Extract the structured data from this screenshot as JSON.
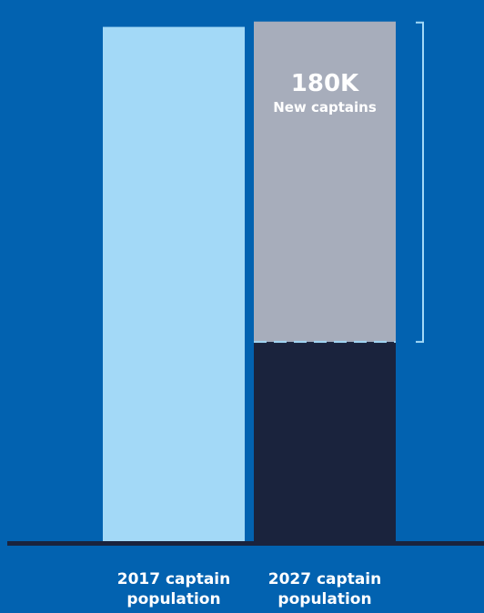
{
  "chart_data": {
    "type": "bar",
    "stacked": true,
    "categories": [
      "2017 captain population",
      "2027 captain population"
    ],
    "category_labels": [
      "2017 captain\npopulation",
      "2027 captain\npopulation"
    ],
    "series": [
      {
        "values": [
          290,
          113
        ]
      },
      {
        "values": [
          0,
          180
        ]
      }
    ],
    "annotation": {
      "value": "180K",
      "text": "New captains"
    },
    "ylim": [
      0,
      300
    ],
    "grid": false,
    "legend": "none"
  },
  "colors": {
    "background": "#0262b0",
    "bar_2017": "#a3d9f7",
    "existing_2027": "#1a233d",
    "new_2027": "#a7adbb",
    "baseline": "#1a233d",
    "bracket": "#a3d9f7",
    "dash": "#a3d9f7"
  }
}
